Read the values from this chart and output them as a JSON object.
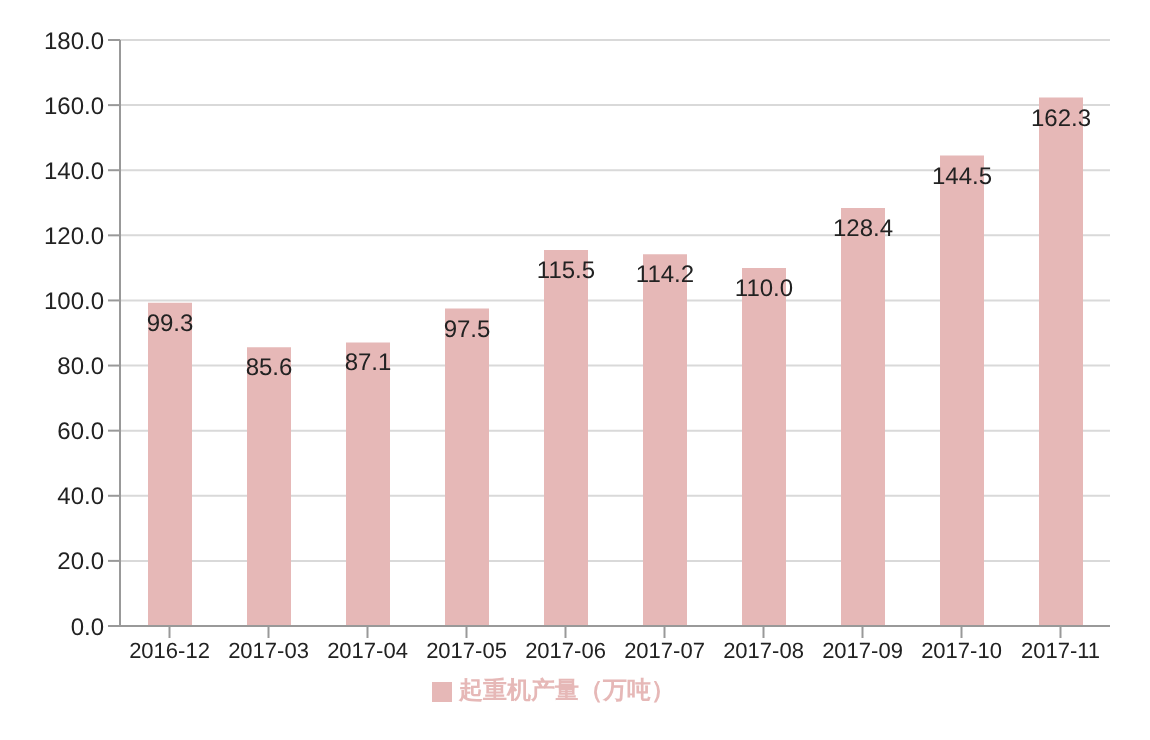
{
  "chart_data": {
    "type": "bar",
    "categories": [
      "2016-12",
      "2017-03",
      "2017-04",
      "2017-05",
      "2017-06",
      "2017-07",
      "2017-08",
      "2017-09",
      "2017-10",
      "2017-11"
    ],
    "series": [
      {
        "name": "起重机产量（万吨）",
        "color": "#e6b8b7",
        "values": [
          99.3,
          85.6,
          87.1,
          97.5,
          115.5,
          114.2,
          110.0,
          128.4,
          144.5,
          162.3
        ],
        "value_labels": [
          "99.3",
          "85.6",
          "87.1",
          "97.5",
          "115.5",
          "114.2",
          "110.0",
          "128.4",
          "144.5",
          "162.3"
        ]
      }
    ],
    "ylim": [
      0,
      180
    ],
    "yticks": [
      {
        "value": 0,
        "label": "0.0"
      },
      {
        "value": 20,
        "label": "20.0"
      },
      {
        "value": 40,
        "label": "40.0"
      },
      {
        "value": 60,
        "label": "60.0"
      },
      {
        "value": 80,
        "label": "80.0"
      },
      {
        "value": 100,
        "label": "100.0"
      },
      {
        "value": 120,
        "label": "120.0"
      },
      {
        "value": 140,
        "label": "140.0"
      },
      {
        "value": 160,
        "label": "160.0"
      },
      {
        "value": 180,
        "label": "180.0"
      }
    ],
    "grid": "y",
    "legend": "bottom"
  }
}
